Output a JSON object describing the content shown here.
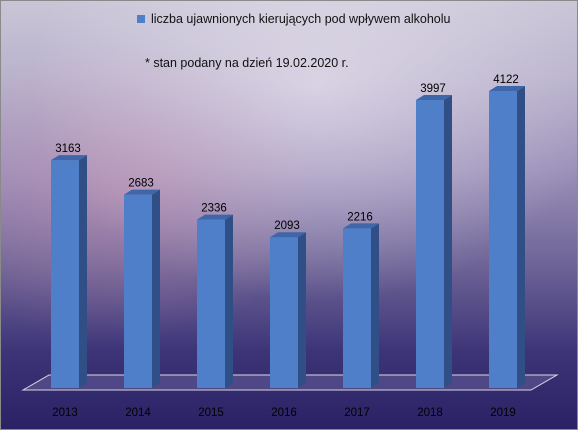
{
  "chart_data": {
    "type": "bar",
    "categories": [
      "2013",
      "2014",
      "2015",
      "2016",
      "2017",
      "2018",
      "2019"
    ],
    "series": [
      {
        "name": "liczba ujawnionych kierujących pod wpływem alkoholu",
        "values": [
          3163,
          2683,
          2336,
          2093,
          2216,
          3997,
          4122
        ],
        "color": "#4f7fc8"
      }
    ],
    "annotation": "* stan podany na dzień 19.02.2020 r.",
    "legend_position": "top",
    "grid": false
  }
}
